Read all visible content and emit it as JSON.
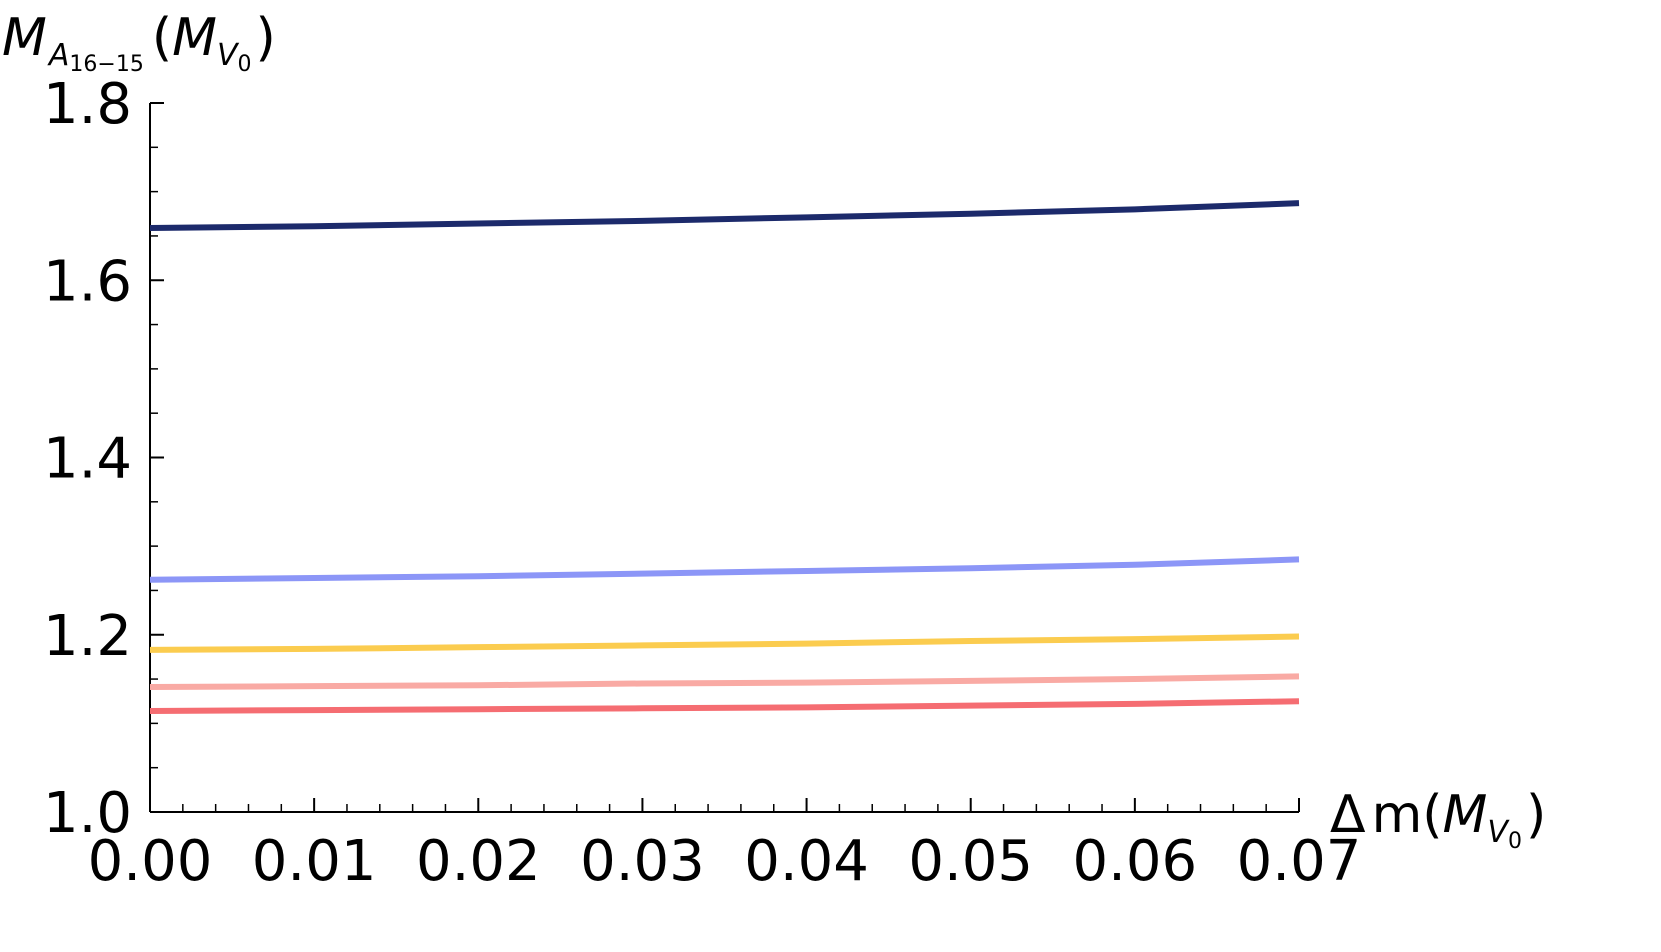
{
  "chart_data": {
    "type": "line",
    "xlabel": "Δm(M_V0)",
    "ylabel": "M_A16-15(M_V0)",
    "ylabel_parts": {
      "main": "M",
      "sub": "A",
      "subsub": "16−15",
      "paren_open": "(",
      "paren_main": "M",
      "paren_sub": "V",
      "paren_subsub": "0",
      "paren_close": ")"
    },
    "xlabel_parts": {
      "delta": "Δ",
      "main": "m(",
      "paren_main": "M",
      "paren_sub": "V",
      "paren_subsub": "0",
      "paren_close": ")"
    },
    "xlim": [
      0,
      0.07
    ],
    "ylim": [
      1.0,
      1.8
    ],
    "x_ticks": [
      0.0,
      0.01,
      0.02,
      0.03,
      0.04,
      0.05,
      0.06,
      0.07
    ],
    "x_tick_labels": [
      "0.00",
      "0.01",
      "0.02",
      "0.03",
      "0.04",
      "0.05",
      "0.06",
      "0.07"
    ],
    "y_ticks": [
      1.0,
      1.2,
      1.4,
      1.6,
      1.8
    ],
    "y_tick_labels": [
      "1.0",
      "1.2",
      "1.4",
      "1.6",
      "1.8"
    ],
    "grid": false,
    "series": [
      {
        "color": "#1c2a6b",
        "x": [
          0,
          0.01,
          0.02,
          0.03,
          0.04,
          0.05,
          0.06,
          0.07
        ],
        "y": [
          1.659,
          1.661,
          1.664,
          1.667,
          1.671,
          1.675,
          1.68,
          1.687
        ]
      },
      {
        "color": "#8c96f7",
        "x": [
          0,
          0.01,
          0.02,
          0.03,
          0.04,
          0.05,
          0.06,
          0.07
        ],
        "y": [
          1.262,
          1.264,
          1.266,
          1.269,
          1.272,
          1.275,
          1.279,
          1.285
        ]
      },
      {
        "color": "#fbcc4f",
        "x": [
          0,
          0.01,
          0.02,
          0.03,
          0.04,
          0.05,
          0.06,
          0.07
        ],
        "y": [
          1.183,
          1.184,
          1.186,
          1.188,
          1.19,
          1.193,
          1.195,
          1.198
        ]
      },
      {
        "color": "#f9aaa4",
        "x": [
          0,
          0.01,
          0.02,
          0.03,
          0.04,
          0.05,
          0.06,
          0.07
        ],
        "y": [
          1.141,
          1.142,
          1.143,
          1.145,
          1.146,
          1.148,
          1.15,
          1.153
        ]
      },
      {
        "color": "#f56d72",
        "x": [
          0,
          0.01,
          0.02,
          0.03,
          0.04,
          0.05,
          0.06,
          0.07
        ],
        "y": [
          1.114,
          1.115,
          1.116,
          1.117,
          1.118,
          1.12,
          1.122,
          1.125
        ]
      }
    ]
  }
}
